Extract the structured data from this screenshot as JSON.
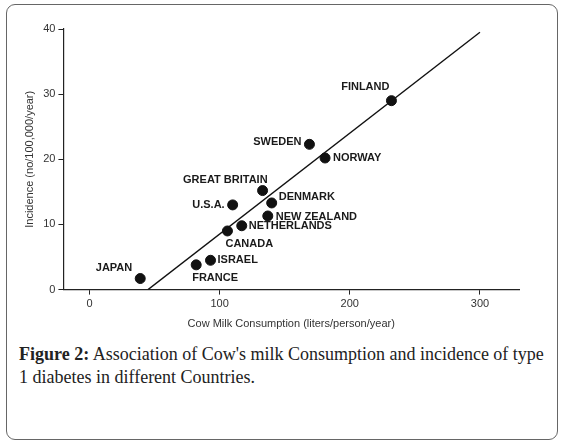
{
  "chart_data": {
    "type": "scatter",
    "x_label": "Cow Milk Consumption (liters/person/year)",
    "y_label": "Incidence (no/100,000/year)",
    "x": [
      39,
      82,
      93,
      106,
      110,
      117,
      133,
      140,
      137,
      169,
      181,
      232
    ],
    "values": [
      1.7,
      3.8,
      4.5,
      9.0,
      13.0,
      9.8,
      15.2,
      13.3,
      11.3,
      22.3,
      20.2,
      29.0
    ],
    "labels": [
      "JAPAN",
      "FRANCE",
      "ISRAEL",
      "CANADA",
      "U.S.A.",
      "NETHERLANDS",
      "GREAT BRITAIN",
      "DENMARK",
      "NEW ZEALAND",
      "SWEDEN",
      "NORWAY",
      "FINLAND"
    ],
    "color": "#111111",
    "trend_line": {
      "x": [
        45,
        300
      ],
      "values": [
        0,
        39.5
      ],
      "color": "#111111"
    },
    "xlim": [
      -20,
      330
    ],
    "xticks": [
      0,
      100,
      200,
      300
    ],
    "ylim": [
      0,
      40
    ],
    "yticks": [
      0,
      10,
      20,
      30,
      40
    ],
    "grid": false,
    "caption_label": "Figure 2:",
    "caption": "Association of Cow's milk Consumption and incidence of type 1 diabetes in different Countries."
  }
}
